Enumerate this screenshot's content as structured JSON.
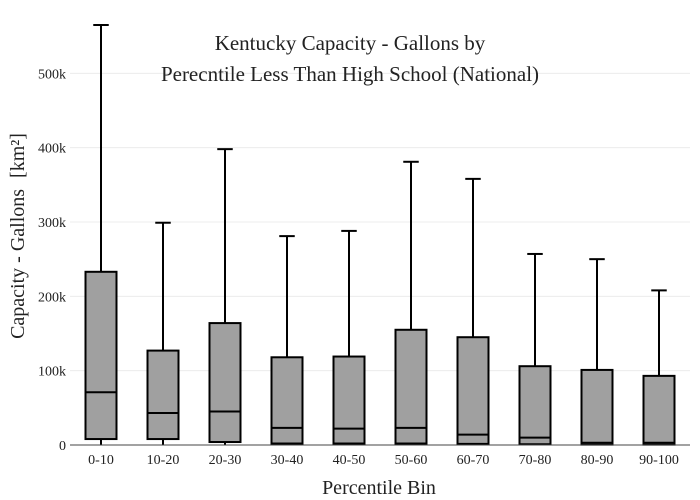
{
  "chart_data": {
    "type": "box",
    "title_lines": [
      "Kentucky Capacity - Gallons by",
      "Perecntile Less Than High School (National)"
    ],
    "xlabel": "Percentile Bin",
    "ylabel": "Capacity - Gallons",
    "ylabel_unit": "[km²]",
    "ylim": [
      0,
      565000
    ],
    "yticks": [
      0,
      100000,
      200000,
      300000,
      400000,
      500000
    ],
    "ytick_labels": [
      "0",
      "100k",
      "200k",
      "300k",
      "400k",
      "500k"
    ],
    "grid": true,
    "categories": [
      "0-10",
      "10-20",
      "20-30",
      "30-40",
      "40-50",
      "50-60",
      "60-70",
      "70-80",
      "80-90",
      "90-100"
    ],
    "boxes": [
      {
        "low": 0,
        "q1": 8000,
        "median": 71000,
        "q3": 233000,
        "high": 565000
      },
      {
        "low": 0,
        "q1": 8000,
        "median": 43000,
        "q3": 127000,
        "high": 299000
      },
      {
        "low": 0,
        "q1": 4000,
        "median": 45000,
        "q3": 164000,
        "high": 398000
      },
      {
        "low": 0,
        "q1": 2000,
        "median": 23000,
        "q3": 118000,
        "high": 281000
      },
      {
        "low": 0,
        "q1": 2000,
        "median": 22000,
        "q3": 119000,
        "high": 288000
      },
      {
        "low": 0,
        "q1": 2000,
        "median": 23000,
        "q3": 155000,
        "high": 381000
      },
      {
        "low": 0,
        "q1": 1500,
        "median": 14000,
        "q3": 145000,
        "high": 358000
      },
      {
        "low": 0,
        "q1": 1000,
        "median": 10000,
        "q3": 106000,
        "high": 257000
      },
      {
        "low": 0,
        "q1": 500,
        "median": 3000,
        "q3": 101000,
        "high": 250000
      },
      {
        "low": 0,
        "q1": 500,
        "median": 3000,
        "q3": 93000,
        "high": 208000
      }
    ],
    "box_color": "#a0a0a0",
    "line_color": "#000000"
  }
}
